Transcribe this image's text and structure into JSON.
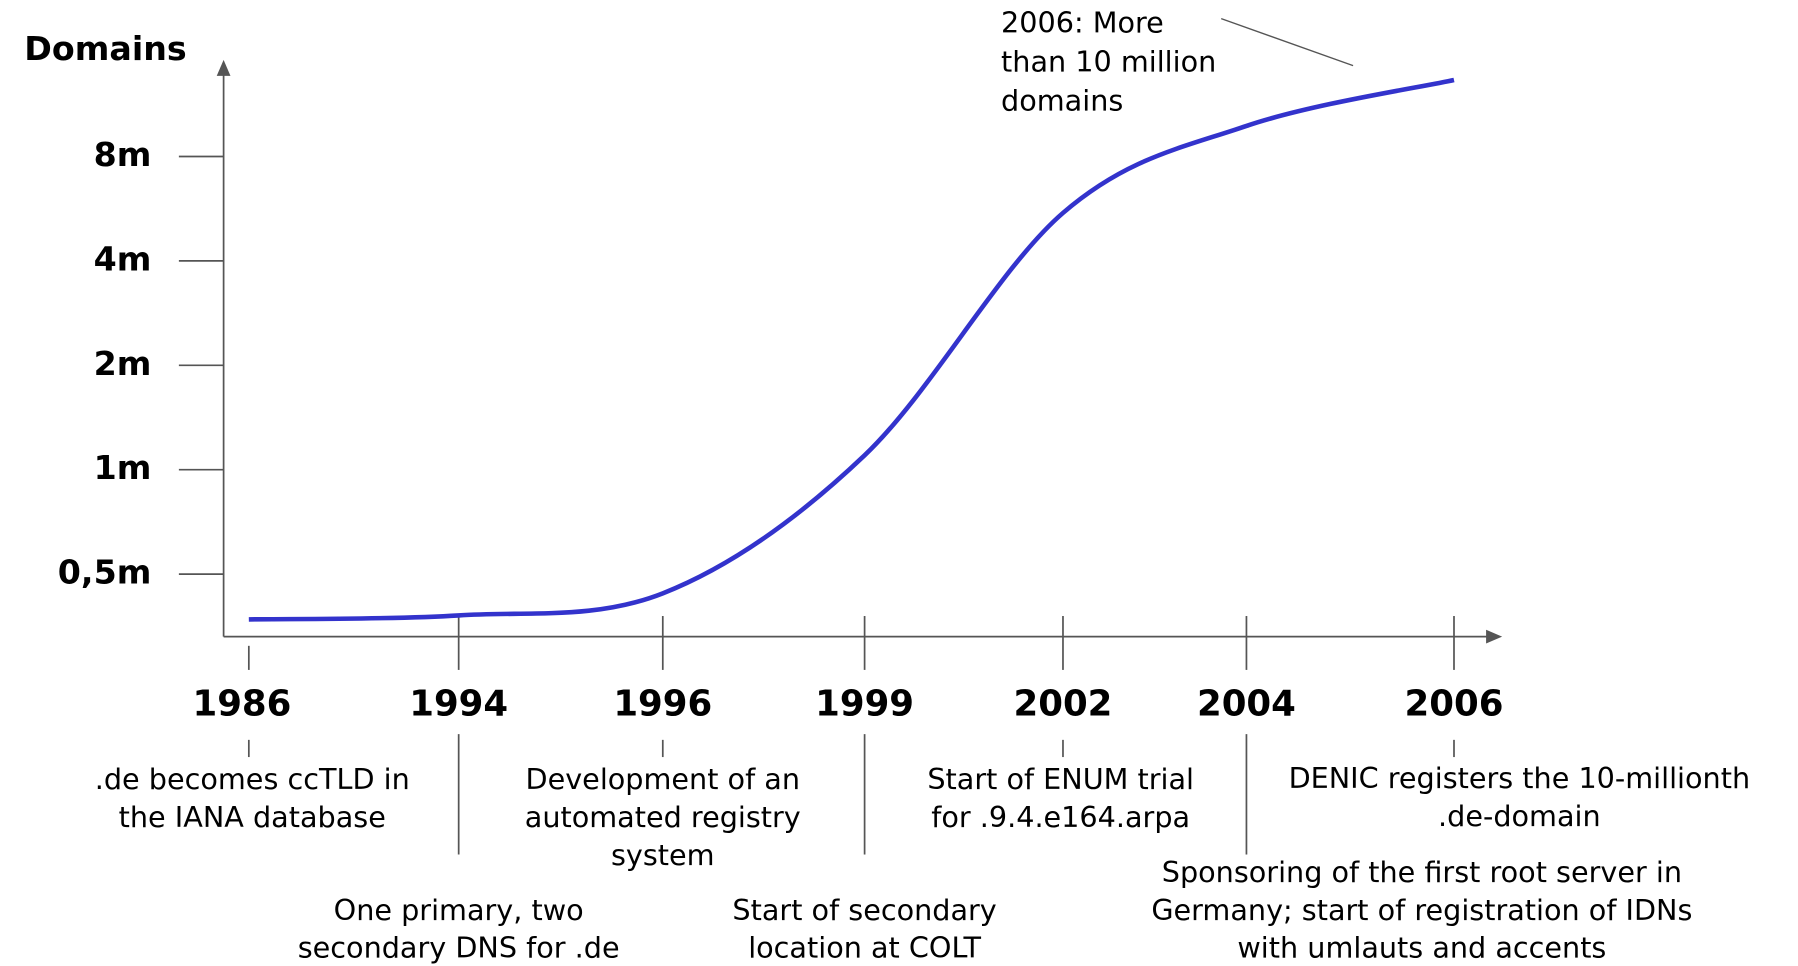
{
  "chart_data": {
    "type": "line",
    "y_label": "Domains",
    "log_scale": true,
    "categories": [
      "1986",
      "1994",
      "1996",
      "1999",
      "2002",
      "2004",
      "2006"
    ],
    "series": [
      {
        "name": "Domains",
        "color": "#3333cc",
        "values": [
          0.37,
          0.38,
          0.44,
          1.1,
          5.5,
          9.8,
          13.3
        ]
      }
    ],
    "ylim": [
      0.33,
      14.3
    ],
    "yticks": [
      {
        "value": 0.5,
        "label": "0,5m"
      },
      {
        "value": 1,
        "label": "1m"
      },
      {
        "value": 2,
        "label": "2m"
      },
      {
        "value": 4,
        "label": "4m"
      },
      {
        "value": 8,
        "label": "8m"
      }
    ],
    "annotation": [
      "2006: More",
      "than 10 million",
      "domains"
    ],
    "events": [
      [
        ".de becomes ccTLD in",
        "the IANA database"
      ],
      [
        "One primary, two",
        "secondary DNS for .de"
      ],
      [
        "Development of an",
        "automated registry",
        "system"
      ],
      [
        "Start of secondary",
        "location at COLT"
      ],
      [
        "Start of ENUM trial",
        "for .9.4.e164.arpa"
      ],
      [
        "Sponsoring of the first root server in",
        "Germany; start of registration of IDNs",
        "with umlauts and accents"
      ],
      [
        "DENIC registers the 10-millionth",
        ".de-domain"
      ]
    ]
  }
}
